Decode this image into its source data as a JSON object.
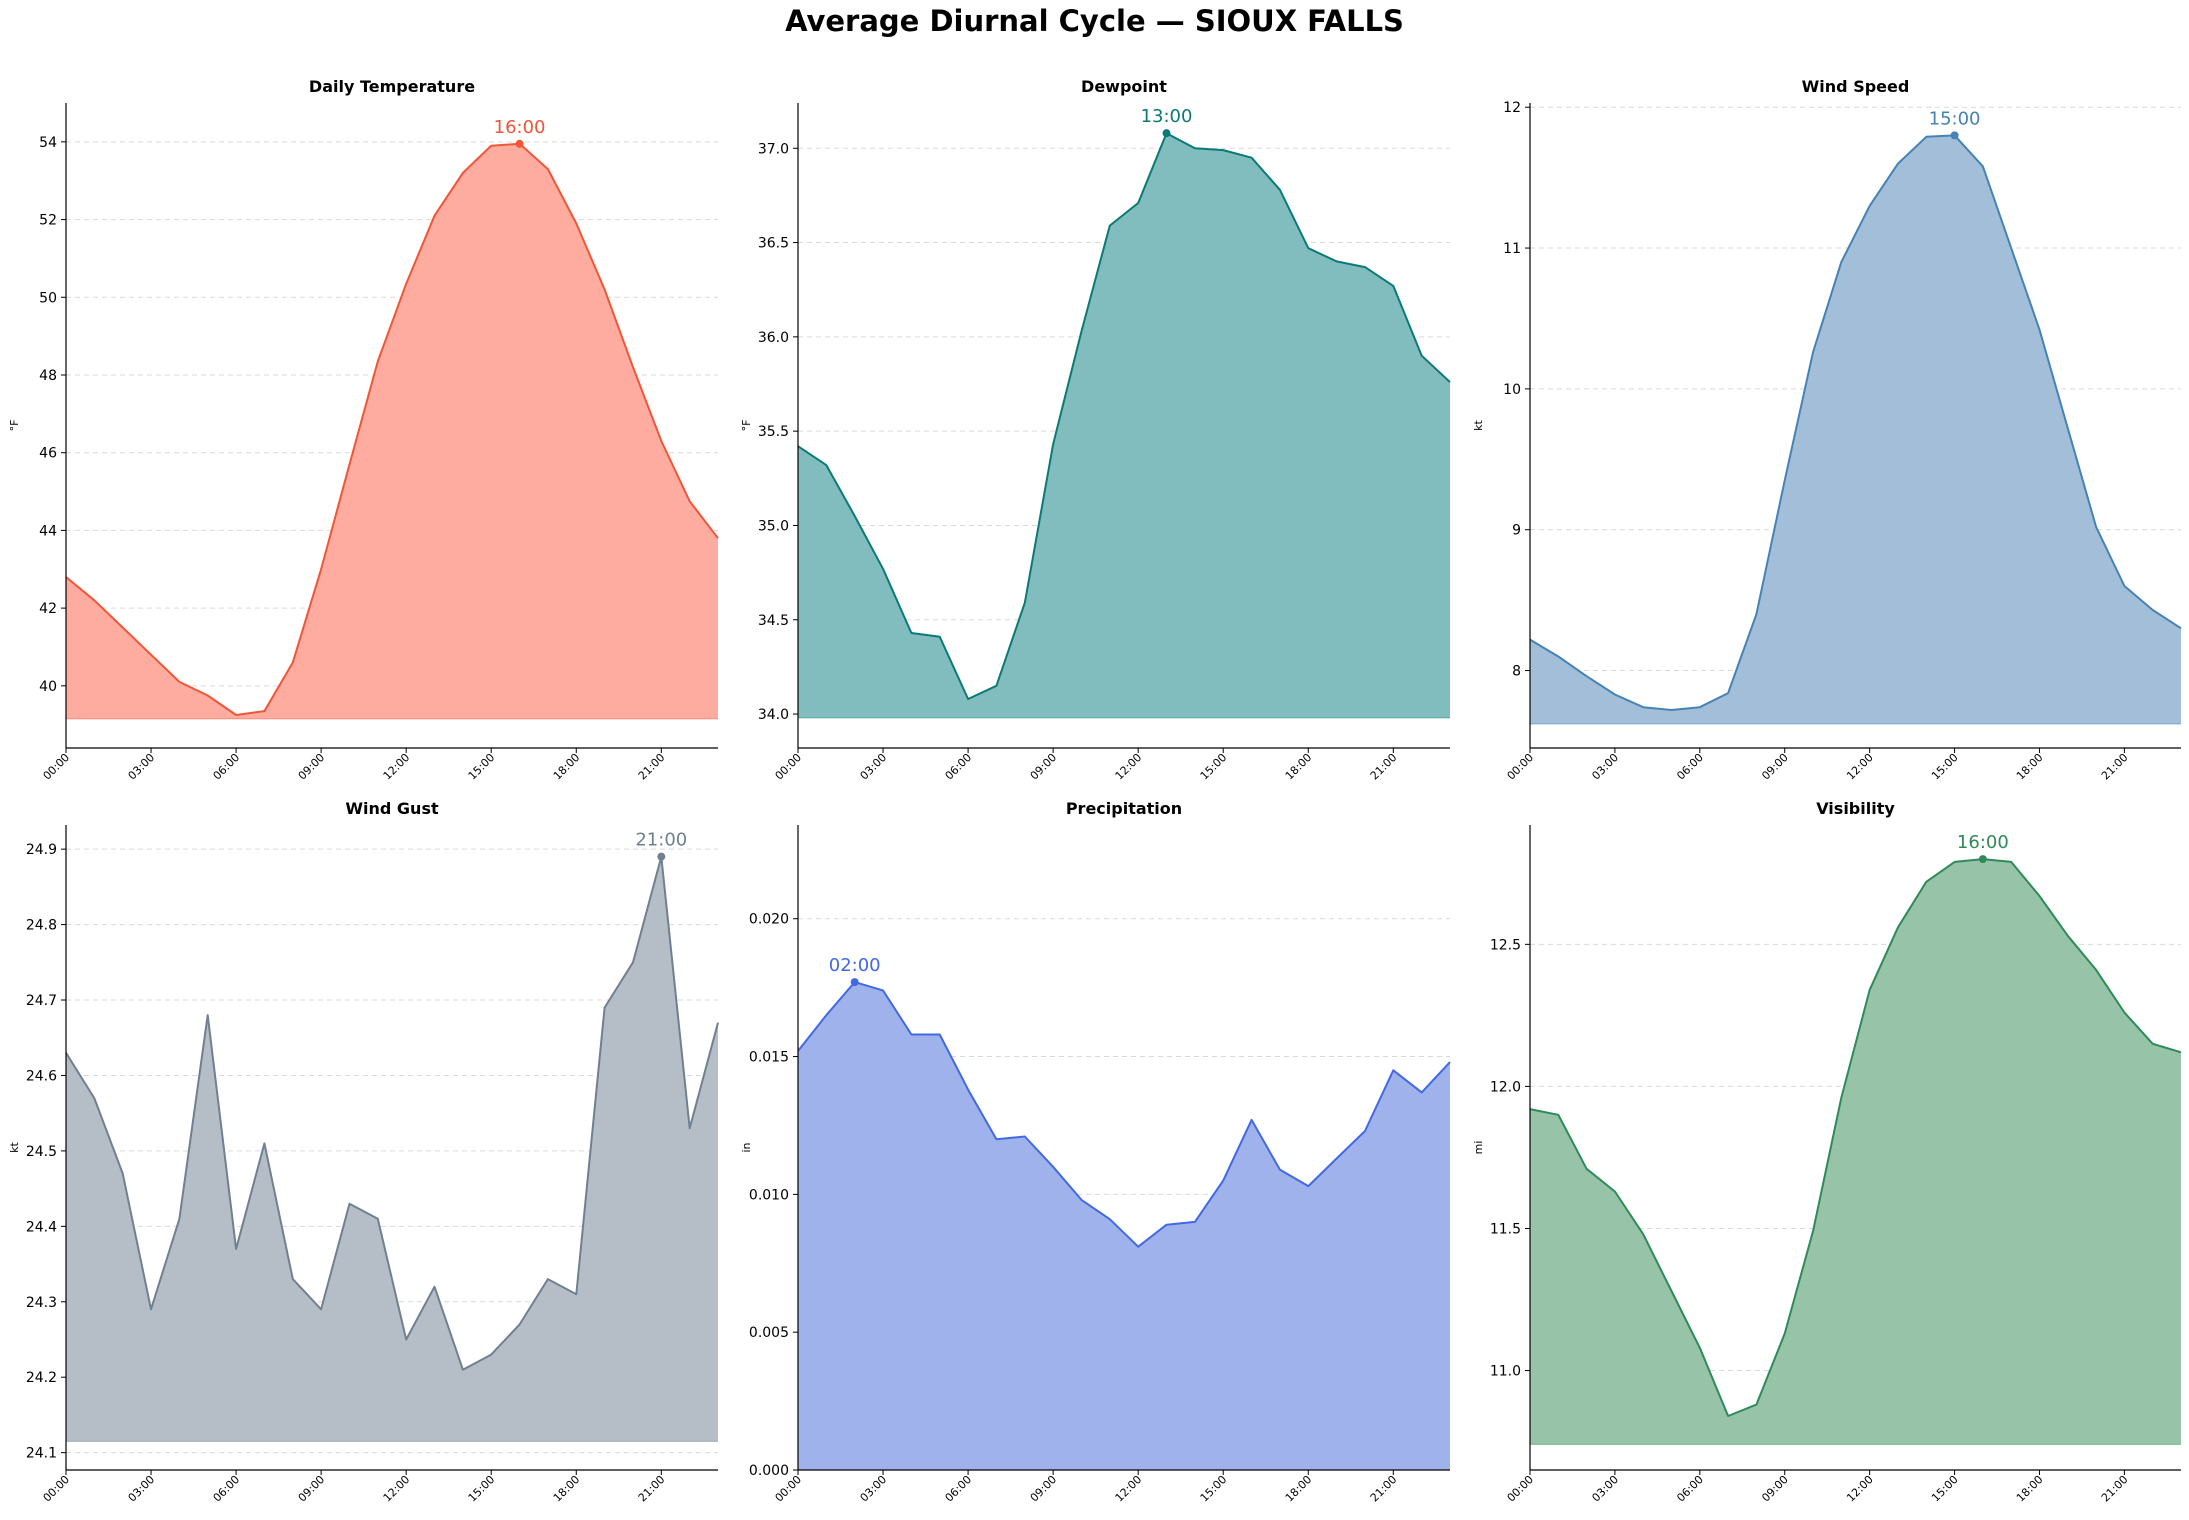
{
  "figure": {
    "title": "Average Diurnal Cycle — SIOUX FALLS"
  },
  "chart_data": [
    {
      "type": "area",
      "title": "Daily Temperature",
      "ylabel": "°F",
      "color": "#f05537",
      "fill": "#ffaca0",
      "x": [
        "00:00",
        "01:00",
        "02:00",
        "03:00",
        "04:00",
        "05:00",
        "06:00",
        "07:00",
        "08:00",
        "09:00",
        "10:00",
        "11:00",
        "12:00",
        "13:00",
        "14:00",
        "15:00",
        "16:00",
        "17:00",
        "18:00",
        "19:00",
        "20:00",
        "21:00",
        "22:00",
        "23:00"
      ],
      "values": [
        42.8,
        42.2,
        41.5,
        40.8,
        40.1,
        39.75,
        39.25,
        39.35,
        40.6,
        43.0,
        45.7,
        48.35,
        50.35,
        52.1,
        53.2,
        53.9,
        53.95,
        53.3,
        51.9,
        50.2,
        48.2,
        46.3,
        44.75,
        43.8
      ],
      "xticks": [
        "00:00",
        "03:00",
        "06:00",
        "09:00",
        "12:00",
        "15:00",
        "18:00",
        "21:00"
      ],
      "yticks": [
        "40",
        "42",
        "44",
        "46",
        "48",
        "50",
        "52",
        "54"
      ],
      "ylim": [
        38.4,
        55.0
      ],
      "fill_base": 39.15,
      "peak_label": "16:00",
      "grid": "horizontal dashed"
    },
    {
      "type": "area",
      "title": "Dewpoint",
      "ylabel": "°F",
      "color": "#0b7a75",
      "fill": "#81bdbe",
      "x": [
        "00:00",
        "01:00",
        "02:00",
        "03:00",
        "04:00",
        "05:00",
        "06:00",
        "07:00",
        "08:00",
        "09:00",
        "10:00",
        "11:00",
        "12:00",
        "13:00",
        "14:00",
        "15:00",
        "16:00",
        "17:00",
        "18:00",
        "19:00",
        "20:00",
        "21:00",
        "22:00",
        "23:00"
      ],
      "values": [
        35.42,
        35.32,
        35.05,
        34.77,
        34.43,
        34.41,
        34.08,
        34.15,
        34.59,
        35.43,
        36.03,
        36.59,
        36.71,
        37.08,
        37.0,
        36.99,
        36.95,
        36.78,
        36.47,
        36.4,
        36.37,
        36.27,
        35.9,
        35.76
      ],
      "xticks": [
        "00:00",
        "03:00",
        "06:00",
        "09:00",
        "12:00",
        "15:00",
        "18:00",
        "21:00"
      ],
      "yticks": [
        "34.0",
        "34.5",
        "35.0",
        "35.5",
        "36.0",
        "36.5",
        "37.0"
      ],
      "ylim": [
        33.82,
        37.24
      ],
      "fill_base": 33.98,
      "peak_label": "13:00",
      "grid": "horizontal dashed"
    },
    {
      "type": "area",
      "title": "Wind Speed",
      "ylabel": "kt",
      "color": "#4682b4",
      "fill": "#a2bed9",
      "x": [
        "00:00",
        "01:00",
        "02:00",
        "03:00",
        "04:00",
        "05:00",
        "06:00",
        "07:00",
        "08:00",
        "09:00",
        "10:00",
        "11:00",
        "12:00",
        "13:00",
        "14:00",
        "15:00",
        "16:00",
        "17:00",
        "18:00",
        "19:00",
        "20:00",
        "21:00",
        "22:00",
        "23:00"
      ],
      "values": [
        8.22,
        8.1,
        7.96,
        7.83,
        7.74,
        7.72,
        7.74,
        7.84,
        8.4,
        9.35,
        10.26,
        10.9,
        11.3,
        11.6,
        11.79,
        11.8,
        11.58,
        11.0,
        10.42,
        9.72,
        9.02,
        8.6,
        8.43,
        8.3
      ],
      "xticks": [
        "00:00",
        "03:00",
        "06:00",
        "09:00",
        "12:00",
        "15:00",
        "18:00",
        "21:00"
      ],
      "yticks": [
        "8",
        "9",
        "10",
        "11",
        "12"
      ],
      "ylim": [
        7.45,
        12.03
      ],
      "fill_base": 7.62,
      "peak_label": "15:00",
      "grid": "horizontal dashed"
    },
    {
      "type": "area",
      "title": "Wind Gust",
      "ylabel": "kt",
      "color": "#708090",
      "fill": "#b5bec7",
      "x": [
        "00:00",
        "01:00",
        "02:00",
        "03:00",
        "04:00",
        "05:00",
        "06:00",
        "07:00",
        "08:00",
        "09:00",
        "10:00",
        "11:00",
        "12:00",
        "13:00",
        "14:00",
        "15:00",
        "16:00",
        "17:00",
        "18:00",
        "19:00",
        "20:00",
        "21:00",
        "22:00",
        "23:00"
      ],
      "values": [
        24.63,
        24.57,
        24.47,
        24.29,
        24.41,
        24.68,
        24.37,
        24.51,
        24.33,
        24.29,
        24.43,
        24.41,
        24.25,
        24.32,
        24.21,
        24.23,
        24.27,
        24.33,
        24.31,
        24.69,
        24.75,
        24.89,
        24.53,
        24.67
      ],
      "xticks": [
        "00:00",
        "03:00",
        "06:00",
        "09:00",
        "12:00",
        "15:00",
        "18:00",
        "21:00"
      ],
      "yticks": [
        "24.1",
        "24.2",
        "24.3",
        "24.4",
        "24.5",
        "24.6",
        "24.7",
        "24.8",
        "24.9"
      ],
      "ylim": [
        24.077,
        24.932
      ],
      "fill_base": 24.115,
      "peak_label": "21:00",
      "grid": "horizontal dashed"
    },
    {
      "type": "area",
      "title": "Precipitation",
      "ylabel": "in",
      "color": "#4169e1",
      "fill": "#9fb2ec",
      "x": [
        "00:00",
        "01:00",
        "02:00",
        "03:00",
        "04:00",
        "05:00",
        "06:00",
        "07:00",
        "08:00",
        "09:00",
        "10:00",
        "11:00",
        "12:00",
        "13:00",
        "14:00",
        "15:00",
        "16:00",
        "17:00",
        "18:00",
        "19:00",
        "20:00",
        "21:00",
        "22:00",
        "23:00"
      ],
      "values": [
        0.0152,
        0.0165,
        0.0177,
        0.0174,
        0.0158,
        0.0158,
        0.0138,
        0.012,
        0.0121,
        0.011,
        0.0098,
        0.0091,
        0.0081,
        0.0089,
        0.009,
        0.0105,
        0.0127,
        0.0109,
        0.0103,
        0.0113,
        0.0123,
        0.0145,
        0.0137,
        0.0148
      ],
      "xticks": [
        "00:00",
        "03:00",
        "06:00",
        "09:00",
        "12:00",
        "15:00",
        "18:00",
        "21:00"
      ],
      "yticks": [
        "0.000",
        "0.005",
        "0.010",
        "0.015",
        "0.020"
      ],
      "ylim": [
        0.0,
        0.0234
      ],
      "fill_base": 0.0,
      "peak_label": "02:00",
      "grid": "horizontal dashed"
    },
    {
      "type": "area",
      "title": "Visibility",
      "ylabel": "mi",
      "color": "#2e8b57",
      "fill": "#97c3a8",
      "x": [
        "00:00",
        "01:00",
        "02:00",
        "03:00",
        "04:00",
        "05:00",
        "06:00",
        "07:00",
        "08:00",
        "09:00",
        "10:00",
        "11:00",
        "12:00",
        "13:00",
        "14:00",
        "15:00",
        "16:00",
        "17:00",
        "18:00",
        "19:00",
        "20:00",
        "21:00",
        "22:00",
        "23:00"
      ],
      "values": [
        11.92,
        11.9,
        11.71,
        11.63,
        11.48,
        11.28,
        11.08,
        10.84,
        10.88,
        11.13,
        11.49,
        11.96,
        12.34,
        12.56,
        12.72,
        12.79,
        12.8,
        12.79,
        12.67,
        12.53,
        12.41,
        12.26,
        12.15,
        12.12
      ],
      "xticks": [
        "00:00",
        "03:00",
        "06:00",
        "09:00",
        "12:00",
        "15:00",
        "18:00",
        "21:00"
      ],
      "yticks": [
        "11.0",
        "11.5",
        "12.0",
        "12.5"
      ],
      "ylim": [
        10.65,
        12.92
      ],
      "fill_base": 10.74,
      "peak_label": "16:00",
      "grid": "horizontal dashed"
    }
  ]
}
